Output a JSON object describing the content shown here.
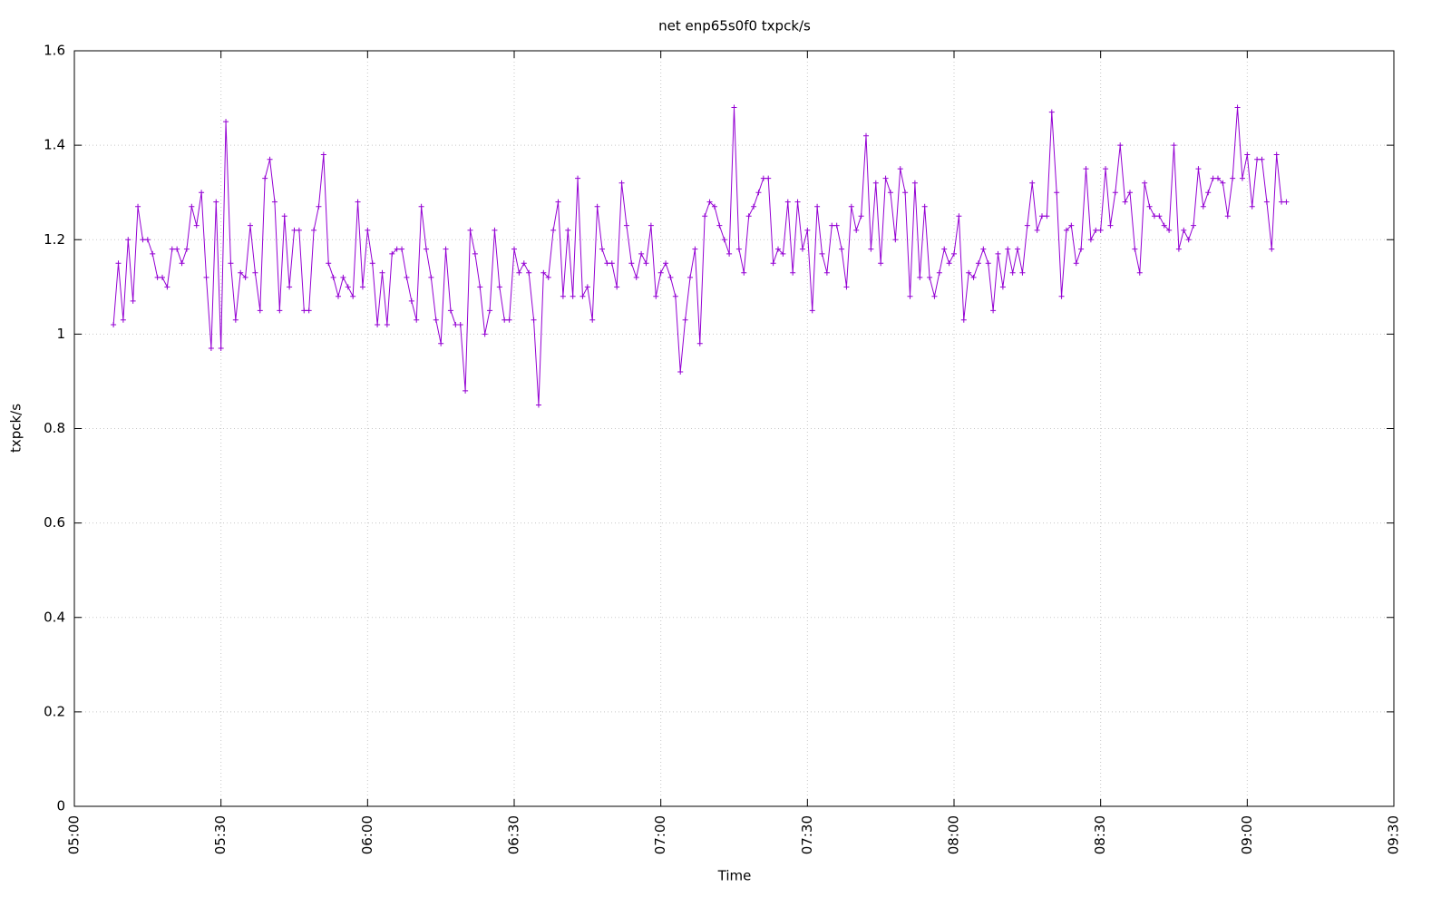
{
  "chart_data": {
    "type": "line",
    "title": "net enp65s0f0 txpck/s",
    "x_label": "Time",
    "y_label": "txpck/s",
    "x": [
      "05:08",
      "05:09",
      "05:10",
      "05:11",
      "05:12",
      "05:13",
      "05:14",
      "05:15",
      "05:16",
      "05:17",
      "05:18",
      "05:19",
      "05:20",
      "05:21",
      "05:22",
      "05:23",
      "05:24",
      "05:25",
      "05:26",
      "05:27",
      "05:28",
      "05:29",
      "05:30",
      "05:31",
      "05:32",
      "05:33",
      "05:34",
      "05:35",
      "05:36",
      "05:37",
      "05:38",
      "05:39",
      "05:40",
      "05:41",
      "05:42",
      "05:43",
      "05:44",
      "05:45",
      "05:46",
      "05:47",
      "05:48",
      "05:49",
      "05:50",
      "05:51",
      "05:52",
      "05:53",
      "05:54",
      "05:55",
      "05:56",
      "05:57",
      "05:58",
      "05:59",
      "06:00",
      "06:01",
      "06:02",
      "06:03",
      "06:04",
      "06:05",
      "06:06",
      "06:07",
      "06:08",
      "06:09",
      "06:10",
      "06:11",
      "06:12",
      "06:13",
      "06:14",
      "06:15",
      "06:16",
      "06:17",
      "06:18",
      "06:19",
      "06:20",
      "06:21",
      "06:22",
      "06:23",
      "06:24",
      "06:25",
      "06:26",
      "06:27",
      "06:28",
      "06:29",
      "06:30",
      "06:31",
      "06:32",
      "06:33",
      "06:34",
      "06:35",
      "06:36",
      "06:37",
      "06:38",
      "06:39",
      "06:40",
      "06:41",
      "06:42",
      "06:43",
      "06:44",
      "06:45",
      "06:46",
      "06:47",
      "06:48",
      "06:49",
      "06:50",
      "06:51",
      "06:52",
      "06:53",
      "06:54",
      "06:55",
      "06:56",
      "06:57",
      "06:58",
      "06:59",
      "07:00",
      "07:01",
      "07:02",
      "07:03",
      "07:04",
      "07:05",
      "07:06",
      "07:07",
      "07:08",
      "07:09",
      "07:10",
      "07:11",
      "07:12",
      "07:13",
      "07:14",
      "07:15",
      "07:16",
      "07:17",
      "07:18",
      "07:19",
      "07:20",
      "07:21",
      "07:22",
      "07:23",
      "07:24",
      "07:25",
      "07:26",
      "07:27",
      "07:28",
      "07:29",
      "07:30",
      "07:31",
      "07:32",
      "07:33",
      "07:34",
      "07:35",
      "07:36",
      "07:37",
      "07:38",
      "07:39",
      "07:40",
      "07:41",
      "07:42",
      "07:43",
      "07:44",
      "07:45",
      "07:46",
      "07:47",
      "07:48",
      "07:49",
      "07:50",
      "07:51",
      "07:52",
      "07:53",
      "07:54",
      "07:55",
      "07:56",
      "07:57",
      "07:58",
      "07:59",
      "08:00",
      "08:01",
      "08:02",
      "08:03",
      "08:04",
      "08:05",
      "08:06",
      "08:07",
      "08:08",
      "08:09",
      "08:10",
      "08:11",
      "08:12",
      "08:13",
      "08:14",
      "08:15",
      "08:16",
      "08:17",
      "08:18",
      "08:19",
      "08:20",
      "08:21",
      "08:22",
      "08:23",
      "08:24",
      "08:25",
      "08:26",
      "08:27",
      "08:28",
      "08:29",
      "08:30",
      "08:31",
      "08:32",
      "08:33",
      "08:34",
      "08:35",
      "08:36",
      "08:37",
      "08:38",
      "08:39",
      "08:40",
      "08:41",
      "08:42",
      "08:43",
      "08:44",
      "08:45",
      "08:46",
      "08:47",
      "08:48",
      "08:49",
      "08:50",
      "08:51",
      "08:52",
      "08:53",
      "08:54",
      "08:55",
      "08:56",
      "08:57",
      "08:58",
      "08:59",
      "09:00",
      "09:01",
      "09:02",
      "09:03",
      "09:04",
      "09:05",
      "09:06",
      "09:07",
      "09:08"
    ],
    "series": [
      {
        "color": "#9400d3",
        "values": [
          1.02,
          1.15,
          1.03,
          1.2,
          1.07,
          1.27,
          1.2,
          1.2,
          1.17,
          1.12,
          1.12,
          1.1,
          1.18,
          1.18,
          1.15,
          1.18,
          1.27,
          1.23,
          1.3,
          1.12,
          0.97,
          1.28,
          0.97,
          1.45,
          1.15,
          1.03,
          1.13,
          1.12,
          1.23,
          1.13,
          1.05,
          1.33,
          1.37,
          1.28,
          1.05,
          1.25,
          1.1,
          1.22,
          1.22,
          1.05,
          1.05,
          1.22,
          1.27,
          1.38,
          1.15,
          1.12,
          1.08,
          1.12,
          1.1,
          1.08,
          1.28,
          1.1,
          1.22,
          1.15,
          1.02,
          1.13,
          1.02,
          1.17,
          1.18,
          1.18,
          1.12,
          1.07,
          1.03,
          1.27,
          1.18,
          1.12,
          1.03,
          0.98,
          1.18,
          1.05,
          1.02,
          1.02,
          0.88,
          1.22,
          1.17,
          1.1,
          1.0,
          1.05,
          1.22,
          1.1,
          1.03,
          1.03,
          1.18,
          1.13,
          1.15,
          1.13,
          1.03,
          0.85,
          1.13,
          1.12,
          1.22,
          1.28,
          1.08,
          1.22,
          1.08,
          1.33,
          1.08,
          1.1,
          1.03,
          1.27,
          1.18,
          1.15,
          1.15,
          1.1,
          1.32,
          1.23,
          1.15,
          1.12,
          1.17,
          1.15,
          1.23,
          1.08,
          1.13,
          1.15,
          1.12,
          1.08,
          0.92,
          1.03,
          1.12,
          1.18,
          0.98,
          1.25,
          1.28,
          1.27,
          1.23,
          1.2,
          1.17,
          1.48,
          1.18,
          1.13,
          1.25,
          1.27,
          1.3,
          1.33,
          1.33,
          1.15,
          1.18,
          1.17,
          1.28,
          1.13,
          1.28,
          1.18,
          1.22,
          1.05,
          1.27,
          1.17,
          1.13,
          1.23,
          1.23,
          1.18,
          1.1,
          1.27,
          1.22,
          1.25,
          1.42,
          1.18,
          1.32,
          1.15,
          1.33,
          1.3,
          1.2,
          1.35,
          1.3,
          1.08,
          1.32,
          1.12,
          1.27,
          1.12,
          1.08,
          1.13,
          1.18,
          1.15,
          1.17,
          1.25,
          1.03,
          1.13,
          1.12,
          1.15,
          1.18,
          1.15,
          1.05,
          1.17,
          1.1,
          1.18,
          1.13,
          1.18,
          1.13,
          1.23,
          1.32,
          1.22,
          1.25,
          1.25,
          1.47,
          1.3,
          1.08,
          1.22,
          1.23,
          1.15,
          1.18,
          1.35,
          1.2,
          1.22,
          1.22,
          1.35,
          1.23,
          1.3,
          1.4,
          1.28,
          1.3,
          1.18,
          1.13,
          1.32,
          1.27,
          1.25,
          1.25,
          1.23,
          1.22,
          1.4,
          1.18,
          1.22,
          1.2,
          1.23,
          1.35,
          1.27,
          1.3,
          1.33,
          1.33,
          1.32,
          1.25,
          1.33,
          1.48,
          1.33,
          1.38,
          1.27,
          1.37,
          1.37,
          1.28,
          1.18,
          1.38,
          1.28,
          1.28
        ]
      }
    ],
    "xlim": [
      "05:00",
      "09:30"
    ],
    "xticks": [
      "05:00",
      "05:30",
      "06:00",
      "06:30",
      "07:00",
      "07:30",
      "08:00",
      "08:30",
      "09:00",
      "09:30"
    ],
    "ylim": [
      0,
      1.6
    ],
    "yticks": [
      0,
      0.2,
      0.4,
      0.6,
      0.8,
      1,
      1.2,
      1.4,
      1.6
    ],
    "grid": true
  }
}
